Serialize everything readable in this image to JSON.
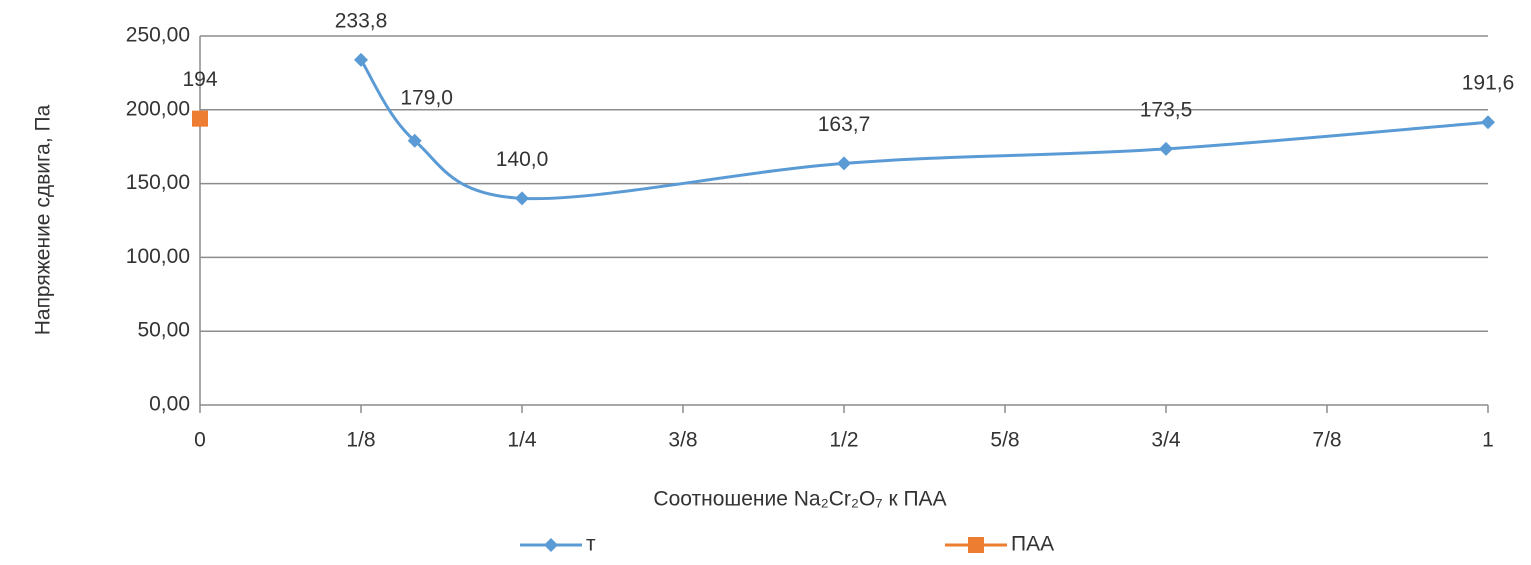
{
  "chart_data": {
    "type": "line",
    "x_label": "Соотношение Na₂Cr₂O₇ к ПАА",
    "y_label": "Напряжение сдвига, Па",
    "xlim": [
      0,
      1
    ],
    "xticks": [
      0,
      {
        "value": 0.125,
        "label": "1/8"
      },
      {
        "value": 0.25,
        "label": "1/4"
      },
      {
        "value": 0.375,
        "label": "3/8"
      },
      {
        "value": 0.5,
        "label": "1/2"
      },
      {
        "value": 0.625,
        "label": "5/8"
      },
      {
        "value": 0.75,
        "label": "3/4"
      },
      {
        "value": 0.875,
        "label": "7/8"
      },
      1
    ],
    "ylim": [
      0,
      250
    ],
    "yticks": [
      {
        "value": 0,
        "label": "0,00"
      },
      {
        "value": 50,
        "label": "50,00"
      },
      {
        "value": 100,
        "label": "100,00"
      },
      {
        "value": 150,
        "label": "150,00"
      },
      {
        "value": 200,
        "label": "200,00"
      },
      {
        "value": 250,
        "label": "250,00"
      }
    ],
    "grid": true,
    "legend": "bottom",
    "series": [
      {
        "name": "т",
        "color": "#5b9bd5",
        "marker": "diamond",
        "smooth": true,
        "x": [
          0.125,
          0.1667,
          0.25,
          0.5,
          0.75,
          1
        ],
        "values": [
          233.8,
          179.0,
          140.0,
          163.7,
          173.5,
          191.6
        ],
        "value_labels": [
          "233,8",
          "179,0",
          "140,0",
          "163,7",
          "173,5",
          "191,6"
        ]
      },
      {
        "name": "ПАА",
        "color": "#ed7d31",
        "marker": "square",
        "x": [
          0
        ],
        "values": [
          194
        ]
      }
    ]
  }
}
